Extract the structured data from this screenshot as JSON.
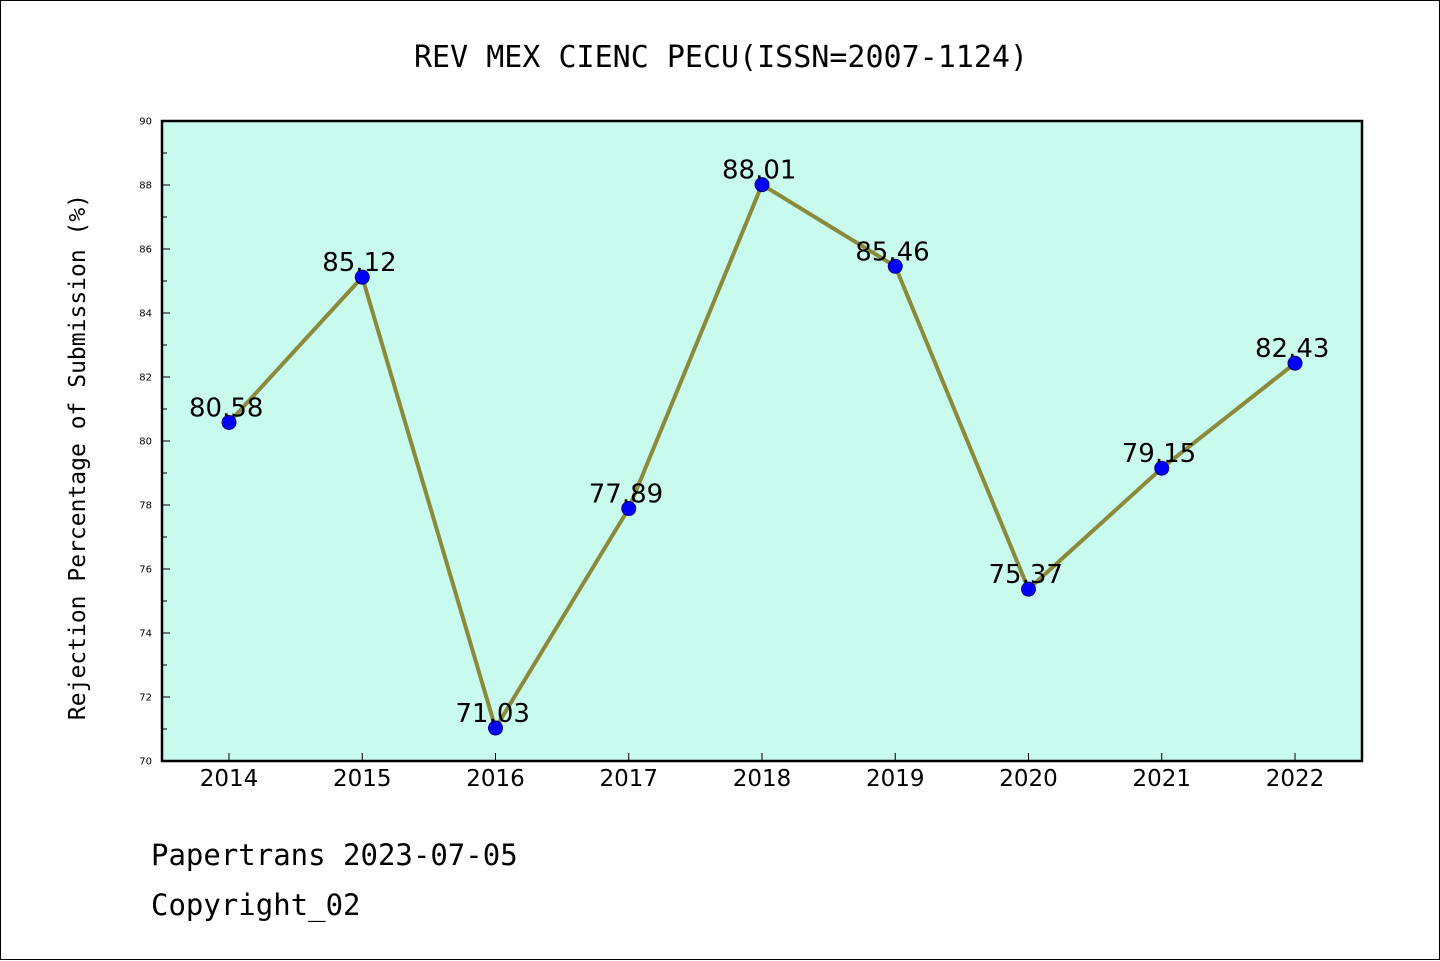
{
  "chart_data": {
    "type": "line",
    "title": "REV MEX CIENC PECU(ISSN=2007-1124)",
    "xlabel": "",
    "ylabel": "Rejection Percentage of Submission (%)",
    "categories": [
      "2014",
      "2015",
      "2016",
      "2017",
      "2018",
      "2019",
      "2020",
      "2021",
      "2022"
    ],
    "series": [
      {
        "values": [
          80.58,
          85.12,
          71.03,
          77.89,
          88.01,
          85.46,
          75.37,
          79.15,
          82.43
        ]
      }
    ],
    "data_labels": [
      "80.58",
      "85.12",
      "71.03",
      "77.89",
      "88.01",
      "85.46",
      "75.37",
      "79.15",
      "82.43"
    ],
    "ylim": [
      70,
      90
    ],
    "yticks": [
      70,
      72,
      74,
      76,
      78,
      80,
      82,
      84,
      86,
      88,
      90
    ],
    "grid": false,
    "colors": {
      "plot_background": "#c8fbee",
      "line": "#8b8a3a",
      "marker": "#0000ff"
    }
  },
  "footer": {
    "line1": "Papertrans 2023-07-05",
    "line2": "Copyright_02"
  }
}
